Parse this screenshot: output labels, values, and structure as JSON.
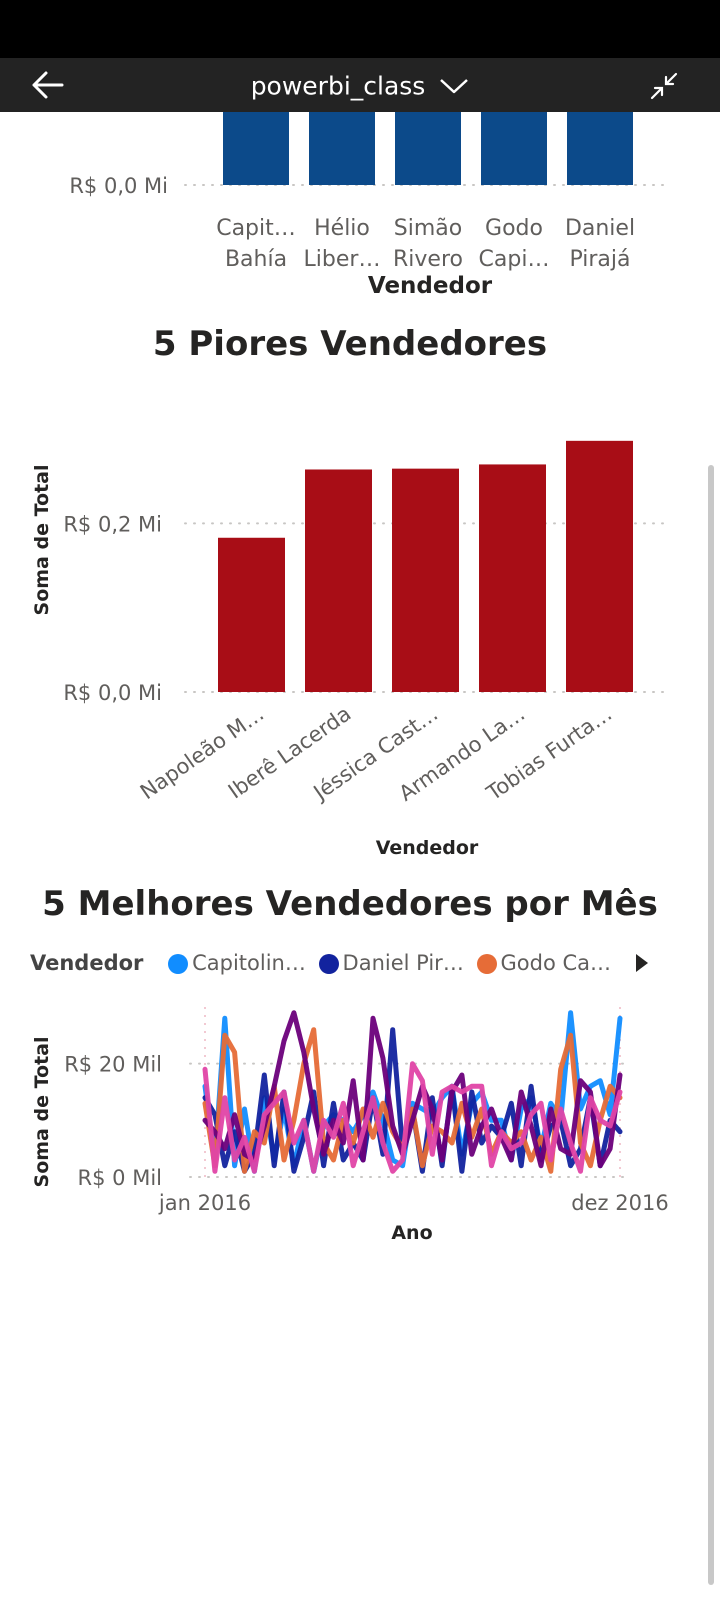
{
  "app": {
    "title": "powerbi_class"
  },
  "icons": {
    "back": "back-arrow-icon",
    "dropdown": "chevron-down-icon",
    "collapse": "collapse-icon"
  },
  "colors": {
    "top_bars": "#0c4a8a",
    "worst_bars": "#a80d16",
    "app_bar": "#232323"
  },
  "chart_data": [
    {
      "type": "bar",
      "title": "",
      "xlabel": "Vendedor",
      "ylabel": "",
      "categories": [
        [
          "Capit…",
          "Bahía"
        ],
        [
          "Hélio",
          "Liber…"
        ],
        [
          "Simão",
          "Rivero"
        ],
        [
          "Godo",
          "Capi…"
        ],
        [
          "Daniel",
          "Pirajá"
        ]
      ],
      "y_tick_labels": [
        "R$ 0,0 Mi"
      ],
      "note_values": "bars cut off at top of viewport; values not visible"
    },
    {
      "type": "bar",
      "title": "5 Piores Vendedores",
      "xlabel": "Vendedor",
      "ylabel": "Soma de Total",
      "categories": [
        "Napoleão M…",
        "Iberê Lacerda",
        "Jéssica Cast…",
        "Armando La…",
        "Tobias Furta…"
      ],
      "values": [
        0.183,
        0.264,
        0.265,
        0.27,
        0.298
      ],
      "ylim": [
        0,
        0.35
      ],
      "y_ticks": [
        0,
        0.2
      ],
      "y_tick_labels": [
        "R$ 0,0 Mi",
        "R$ 0,2 Mi"
      ],
      "grid": true
    },
    {
      "type": "line",
      "title": "5 Melhores Vendedores por Mês",
      "xlabel": "Ano",
      "ylabel": "Soma de Total",
      "x_tick_labels": [
        "jan 2016",
        "dez 2016"
      ],
      "y_ticks": [
        0,
        20
      ],
      "y_tick_labels": [
        "R$ 0 Mil",
        "R$ 20 Mil"
      ],
      "ylim": [
        0,
        30
      ],
      "legend_title": "Vendedor",
      "legend_position": "top",
      "series": [
        {
          "name": "Capitolin…",
          "color": "#118dff",
          "values": [
            16,
            3,
            28,
            2,
            12,
            1,
            14,
            3,
            12,
            2,
            10,
            1,
            9,
            11,
            10,
            8,
            11,
            15,
            10,
            3,
            2,
            13,
            12,
            11,
            14,
            16,
            4,
            13,
            15,
            10,
            10,
            3,
            12,
            14,
            5,
            13,
            10,
            29,
            12,
            16,
            17,
            11,
            28
          ]
        },
        {
          "name": "Daniel Pir…",
          "color": "#12239e",
          "values": [
            14,
            11,
            2,
            8,
            1,
            4,
            18,
            2,
            15,
            1,
            7,
            15,
            2,
            13,
            3,
            6,
            3,
            14,
            4,
            26,
            5,
            12,
            1,
            14,
            2,
            16,
            1,
            15,
            6,
            9,
            7,
            13,
            2,
            16,
            3,
            9,
            10,
            2,
            5,
            14,
            2,
            10,
            8
          ]
        },
        {
          "name": "Godo Ca…",
          "color": "#e66c37",
          "values": [
            13,
            2,
            25,
            22,
            1,
            8,
            6,
            16,
            3,
            10,
            20,
            26,
            6,
            3,
            10,
            6,
            12,
            7,
            13,
            8,
            5,
            12,
            2,
            9,
            8,
            6,
            13,
            7,
            12,
            4,
            8,
            6,
            8,
            3,
            7,
            1,
            19,
            25,
            6,
            2,
            10,
            16,
            14
          ]
        },
        {
          "name": "",
          "color": "#6b007b",
          "values": [
            10,
            8,
            5,
            11,
            4,
            3,
            9,
            16,
            24,
            29,
            22,
            12,
            4,
            10,
            6,
            17,
            3,
            28,
            21,
            9,
            4,
            10,
            16,
            12,
            3,
            15,
            18,
            4,
            9,
            12,
            7,
            3,
            15,
            9,
            2,
            12,
            5,
            4,
            17,
            15,
            2,
            5,
            18
          ]
        },
        {
          "name": "",
          "color": "#e044a7",
          "values": [
            19,
            1,
            14,
            3,
            7,
            1,
            11,
            13,
            15,
            6,
            10,
            1,
            10,
            7,
            13,
            2,
            8,
            14,
            6,
            1,
            3,
            20,
            17,
            4,
            15,
            16,
            15,
            16,
            16,
            2,
            8,
            5,
            6,
            11,
            13,
            3,
            12,
            6,
            1,
            14,
            10,
            9,
            15
          ]
        }
      ]
    }
  ]
}
